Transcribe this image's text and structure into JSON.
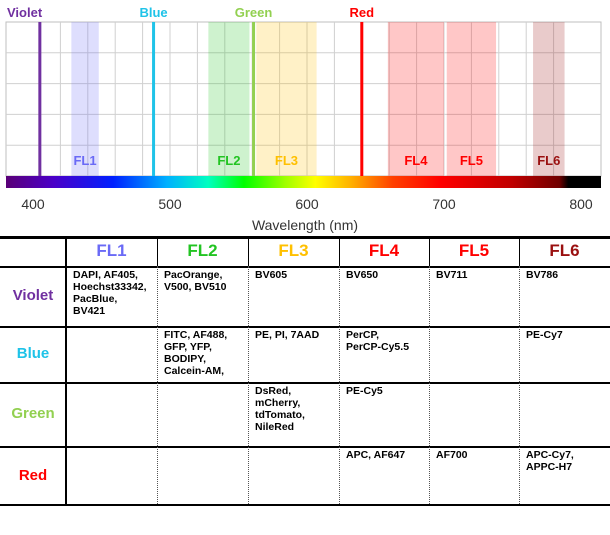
{
  "lasers": [
    {
      "name": "Violet",
      "nm": 405,
      "color": "#7030a0"
    },
    {
      "name": "Blue",
      "nm": 488,
      "color": "#1fc3e8"
    },
    {
      "name": "Green",
      "nm": 561,
      "color": "#92d050"
    },
    {
      "name": "Red",
      "nm": 640,
      "color": "#ff0000"
    }
  ],
  "filters": [
    {
      "name": "FL1",
      "from": 428,
      "to": 448,
      "color": "#6a6af6"
    },
    {
      "name": "FL2",
      "from": 528,
      "to": 558,
      "color": "#22c422"
    },
    {
      "name": "FL3",
      "from": 563,
      "to": 607,
      "color": "#ffc000"
    },
    {
      "name": "FL4",
      "from": 659,
      "to": 700,
      "color": "#ff0000"
    },
    {
      "name": "FL5",
      "from": 702,
      "to": 738,
      "color": "#ff0000"
    },
    {
      "name": "FL6",
      "from": 765,
      "to": 788,
      "color": "#9a1010"
    }
  ],
  "axis": {
    "ticks": [
      "400",
      "500",
      "600",
      "700",
      "800"
    ],
    "label": "Wavelength (nm)"
  },
  "table": {
    "columns": [
      "FL1",
      "FL2",
      "FL3",
      "FL4",
      "FL5",
      "FL6"
    ],
    "rows": [
      {
        "laser": "Violet",
        "cells": [
          "DAPI, AF405,\nHoechst33342,\nPacBlue,\nBV421",
          "PacOrange,\nV500, BV510",
          "BV605",
          "BV650",
          "BV711",
          "BV786"
        ]
      },
      {
        "laser": "Blue",
        "cells": [
          "",
          "FITC, AF488,\nGFP, YFP,\nBODIPY,\nCalcein-AM,",
          "PE, PI, 7AAD",
          "PerCP,\nPerCP-Cy5.5",
          "",
          "PE-Cy7"
        ]
      },
      {
        "laser": "Green",
        "cells": [
          "",
          "",
          "DsRed,\nmCherry,\ntdTomato,\nNileRed",
          "PE-Cy5",
          "",
          ""
        ]
      },
      {
        "laser": "Red",
        "cells": [
          "",
          "",
          "",
          "APC, AF647",
          "AF700",
          "APC-Cy7,\nAPPC-H7"
        ]
      }
    ]
  }
}
